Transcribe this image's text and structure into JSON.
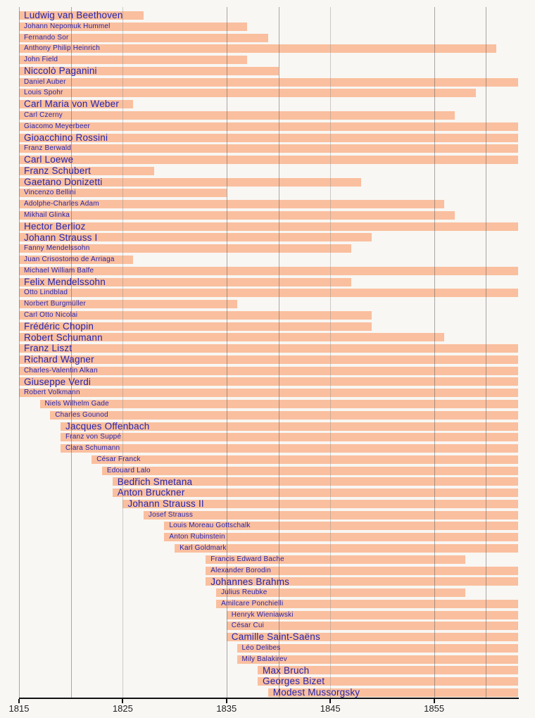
{
  "colors": {
    "background": "#f8f7f4",
    "bar": "#fabf9e",
    "label": "#2525b0",
    "grid_strong": "rgba(88,88,88,0.50)",
    "grid_weak": "rgba(140,140,140,0.42)",
    "axis": "#111111",
    "tick_text": "#1f1f1f"
  },
  "chart_data": {
    "type": "timeline",
    "x_axis": {
      "tick_years": [
        1815,
        1825,
        1835,
        1845,
        1855
      ],
      "tick_labels": [
        "1815",
        "1825",
        "1835",
        "1845",
        "1855"
      ],
      "gridline_years_strong": [
        1815,
        1820,
        1835,
        1840,
        1855,
        1860
      ],
      "gridline_years_weak": [
        1825,
        1845
      ],
      "range": [
        1815,
        1863.2
      ],
      "grid": true
    },
    "series": [
      {
        "name": "Ludwig van Beethoven",
        "start": 1770,
        "end": 1827,
        "label_size": "large"
      },
      {
        "name": "Johann Nepomuk Hummel",
        "start": 1778,
        "end": 1837,
        "label_size": "small"
      },
      {
        "name": "Fernando Sor",
        "start": 1778,
        "end": 1839,
        "label_size": "small"
      },
      {
        "name": "Anthony Philip Heinrich",
        "start": 1781,
        "end": 1861,
        "label_size": "small"
      },
      {
        "name": "John Field",
        "start": 1782,
        "end": 1837,
        "label_size": "small"
      },
      {
        "name": "Niccolò Paganini",
        "start": 1782,
        "end": 1840,
        "label_size": "large"
      },
      {
        "name": "Daniel Auber",
        "start": 1782,
        "end": 1871,
        "label_size": "small"
      },
      {
        "name": "Louis Spohr",
        "start": 1784,
        "end": 1859,
        "label_size": "small"
      },
      {
        "name": "Carl Maria von Weber",
        "start": 1786,
        "end": 1826,
        "label_size": "large"
      },
      {
        "name": "Carl Czerny",
        "start": 1791,
        "end": 1857,
        "label_size": "small"
      },
      {
        "name": "Giacomo Meyerbeer",
        "start": 1791,
        "end": 1864,
        "label_size": "small"
      },
      {
        "name": "Gioacchino Rossini",
        "start": 1792,
        "end": 1868,
        "label_size": "large"
      },
      {
        "name": "Franz Berwald",
        "start": 1796,
        "end": 1868,
        "label_size": "small"
      },
      {
        "name": "Carl Loewe",
        "start": 1796,
        "end": 1869,
        "label_size": "large"
      },
      {
        "name": "Franz Schubert",
        "start": 1797,
        "end": 1828,
        "label_size": "large"
      },
      {
        "name": "Gaetano Donizetti",
        "start": 1797,
        "end": 1848,
        "label_size": "large"
      },
      {
        "name": "Vincenzo Bellini",
        "start": 1801,
        "end": 1835,
        "label_size": "small"
      },
      {
        "name": "Adolphe-Charles Adam",
        "start": 1803,
        "end": 1856,
        "label_size": "small"
      },
      {
        "name": "Mikhail Glinka",
        "start": 1804,
        "end": 1857,
        "label_size": "small"
      },
      {
        "name": "Hector Berlioz",
        "start": 1803,
        "end": 1869,
        "label_size": "large"
      },
      {
        "name": "Johann Strauss I",
        "start": 1804,
        "end": 1849,
        "label_size": "large"
      },
      {
        "name": "Fanny Mendelssohn",
        "start": 1805,
        "end": 1847,
        "label_size": "small"
      },
      {
        "name": "Juan Crisostomo de Arriaga",
        "start": 1806,
        "end": 1826,
        "label_size": "small"
      },
      {
        "name": "Michael William Balfe",
        "start": 1808,
        "end": 1870,
        "label_size": "small"
      },
      {
        "name": "Felix Mendelssohn",
        "start": 1809,
        "end": 1847,
        "label_size": "large"
      },
      {
        "name": "Otto Lindblad",
        "start": 1809,
        "end": 1864,
        "label_size": "small"
      },
      {
        "name": "Norbert Burgmüller",
        "start": 1810,
        "end": 1836,
        "label_size": "small"
      },
      {
        "name": "Carl Otto Nicolai",
        "start": 1810,
        "end": 1849,
        "label_size": "small"
      },
      {
        "name": "Frédéric Chopin",
        "start": 1810,
        "end": 1849,
        "label_size": "large"
      },
      {
        "name": "Robert Schumann",
        "start": 1810,
        "end": 1856,
        "label_size": "large"
      },
      {
        "name": "Franz Liszt",
        "start": 1811,
        "end": 1886,
        "label_size": "large"
      },
      {
        "name": "Richard Wagner",
        "start": 1813,
        "end": 1883,
        "label_size": "large"
      },
      {
        "name": "Charles-Valentin Alkan",
        "start": 1813,
        "end": 1888,
        "label_size": "small"
      },
      {
        "name": "Giuseppe Verdi",
        "start": 1813,
        "end": 1901,
        "label_size": "large"
      },
      {
        "name": "Robert Volkmann",
        "start": 1815,
        "end": 1883,
        "label_size": "small"
      },
      {
        "name": "Niels Wilhelm Gade",
        "start": 1817,
        "end": 1890,
        "label_size": "small"
      },
      {
        "name": "Charles Gounod",
        "start": 1818,
        "end": 1893,
        "label_size": "small"
      },
      {
        "name": "Jacques Offenbach",
        "start": 1819,
        "end": 1880,
        "label_size": "large"
      },
      {
        "name": "Franz von Suppé",
        "start": 1819,
        "end": 1895,
        "label_size": "small"
      },
      {
        "name": "Clara Schumann",
        "start": 1819,
        "end": 1896,
        "label_size": "small"
      },
      {
        "name": "César Franck",
        "start": 1822,
        "end": 1890,
        "label_size": "small"
      },
      {
        "name": "Edouard Lalo",
        "start": 1823,
        "end": 1892,
        "label_size": "small"
      },
      {
        "name": "Bedřich Smetana",
        "start": 1824,
        "end": 1884,
        "label_size": "large"
      },
      {
        "name": "Anton Bruckner",
        "start": 1824,
        "end": 1896,
        "label_size": "large"
      },
      {
        "name": "Johann Strauss II",
        "start": 1825,
        "end": 1899,
        "label_size": "large"
      },
      {
        "name": "Josef Strauss",
        "start": 1827,
        "end": 1870,
        "label_size": "small"
      },
      {
        "name": "Louis Moreau Gottschalk",
        "start": 1829,
        "end": 1869,
        "label_size": "small"
      },
      {
        "name": "Anton Rubinstein",
        "start": 1829,
        "end": 1894,
        "label_size": "small"
      },
      {
        "name": "Karl Goldmark",
        "start": 1830,
        "end": 1915,
        "label_size": "small"
      },
      {
        "name": "Francis Edward Bache",
        "start": 1833,
        "end": 1858,
        "label_size": "small"
      },
      {
        "name": "Alexander Borodin",
        "start": 1833,
        "end": 1887,
        "label_size": "small"
      },
      {
        "name": "Johannes Brahms",
        "start": 1833,
        "end": 1897,
        "label_size": "large"
      },
      {
        "name": "Julius Reubke",
        "start": 1834,
        "end": 1858,
        "label_size": "small"
      },
      {
        "name": "Amilcare Ponchielli",
        "start": 1834,
        "end": 1886,
        "label_size": "small"
      },
      {
        "name": "Henryk Wieniawski",
        "start": 1835,
        "end": 1880,
        "label_size": "small"
      },
      {
        "name": "César Cui",
        "start": 1835,
        "end": 1918,
        "label_size": "small"
      },
      {
        "name": "Camille Saint-Saëns",
        "start": 1835,
        "end": 1921,
        "label_size": "large"
      },
      {
        "name": "Léo Delibes",
        "start": 1836,
        "end": 1891,
        "label_size": "small"
      },
      {
        "name": "Mily Balakirev",
        "start": 1836,
        "end": 1910,
        "label_size": "small"
      },
      {
        "name": "Max Bruch",
        "start": 1838,
        "end": 1920,
        "label_size": "large"
      },
      {
        "name": "Georges Bizet",
        "start": 1838,
        "end": 1875,
        "label_size": "large"
      },
      {
        "name": "Modest Mussorgsky",
        "start": 1839,
        "end": 1881,
        "label_size": "large"
      }
    ]
  }
}
